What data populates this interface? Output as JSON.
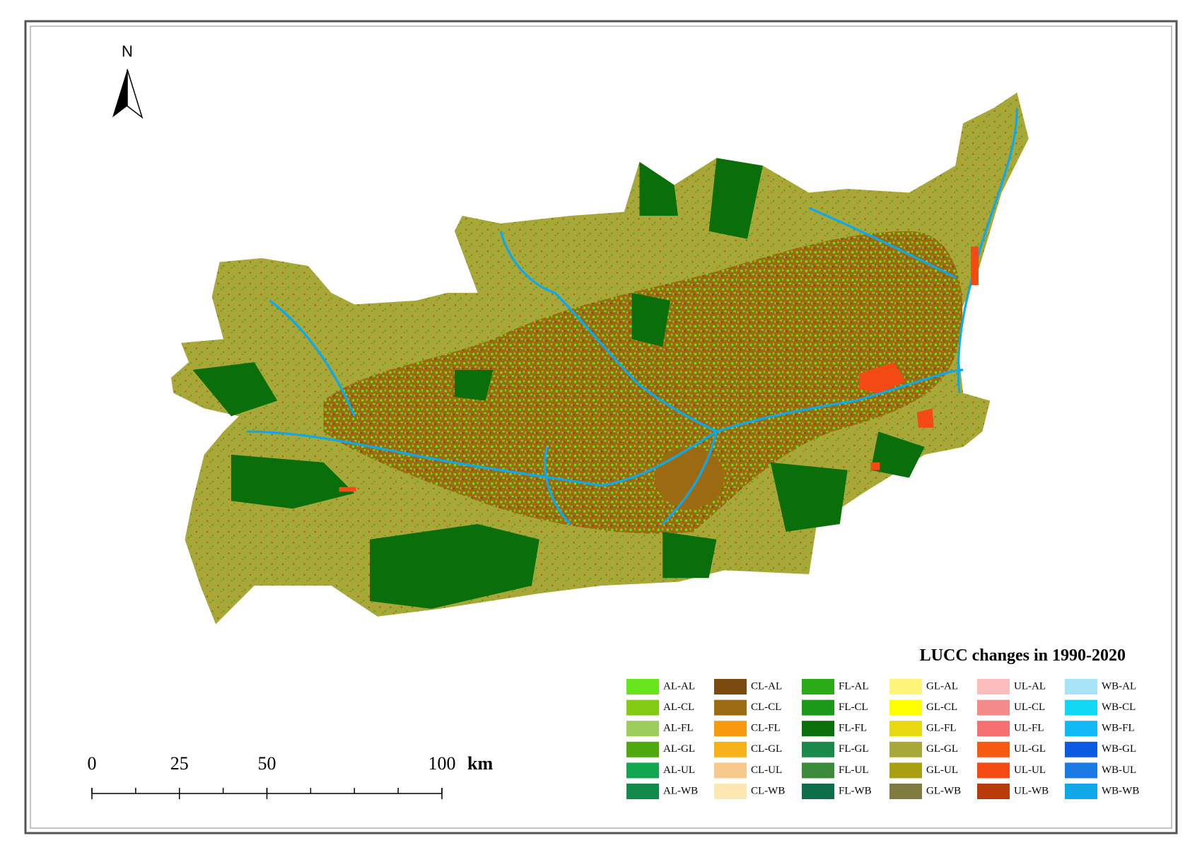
{
  "map": {
    "north_label": "N",
    "scale_bar": {
      "ticks": [
        0,
        25,
        50,
        100
      ],
      "unit": "km"
    },
    "legend": {
      "title": "LUCC changes in 1990-2020",
      "items": [
        {
          "label": "AL-AL",
          "color": "#66e51a"
        },
        {
          "label": "AL-CL",
          "color": "#84cc14"
        },
        {
          "label": "AL-FL",
          "color": "#9ccc5c"
        },
        {
          "label": "AL-GL",
          "color": "#4ea80e"
        },
        {
          "label": "AL-UL",
          "color": "#12a552"
        },
        {
          "label": "AL-WB",
          "color": "#128a4c"
        },
        {
          "label": "CL-AL",
          "color": "#7a4a10"
        },
        {
          "label": "CL-CL",
          "color": "#9c6a10"
        },
        {
          "label": "CL-FL",
          "color": "#f79a10"
        },
        {
          "label": "CL-GL",
          "color": "#f7b21a"
        },
        {
          "label": "CL-UL",
          "color": "#f7c98a"
        },
        {
          "label": "CL-WB",
          "color": "#fde7b0"
        },
        {
          "label": "FL-AL",
          "color": "#2aab18"
        },
        {
          "label": "FL-CL",
          "color": "#1a9a18"
        },
        {
          "label": "FL-FL",
          "color": "#0a6e0a"
        },
        {
          "label": "FL-GL",
          "color": "#1a8a4a"
        },
        {
          "label": "FL-UL",
          "color": "#3a8a3a"
        },
        {
          "label": "FL-WB",
          "color": "#0e6e4a"
        },
        {
          "label": "GL-AL",
          "color": "#fff47a"
        },
        {
          "label": "GL-CL",
          "color": "#ffff00"
        },
        {
          "label": "GL-FL",
          "color": "#e8d810"
        },
        {
          "label": "GL-GL",
          "color": "#a8a838"
        },
        {
          "label": "GL-UL",
          "color": "#a8a010"
        },
        {
          "label": "GL-WB",
          "color": "#7f7a3e"
        },
        {
          "label": "UL-AL",
          "color": "#fbbcbc"
        },
        {
          "label": "UL-CL",
          "color": "#f58a8a"
        },
        {
          "label": "UL-FL",
          "color": "#f57070"
        },
        {
          "label": "UL-GL",
          "color": "#f55a10"
        },
        {
          "label": "UL-UL",
          "color": "#f54a14"
        },
        {
          "label": "UL-WB",
          "color": "#b83a0a"
        },
        {
          "label": "WB-AL",
          "color": "#a8e4f8"
        },
        {
          "label": "WB-CL",
          "color": "#10d8f4"
        },
        {
          "label": "WB-FL",
          "color": "#10b8f4"
        },
        {
          "label": "WB-GL",
          "color": "#0a5ae4"
        },
        {
          "label": "WB-UL",
          "color": "#1a7ae4"
        },
        {
          "label": "WB-WB",
          "color": "#10a8e8"
        }
      ]
    }
  }
}
